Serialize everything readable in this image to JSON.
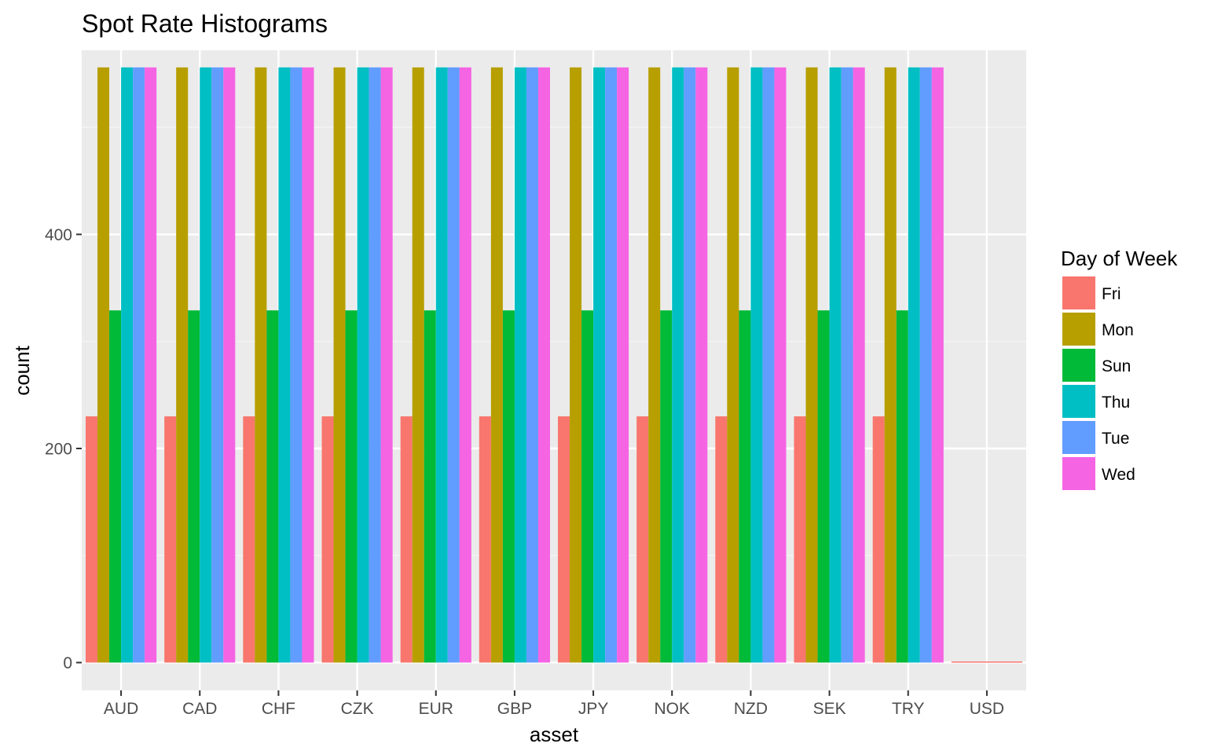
{
  "chart_data": {
    "type": "bar",
    "title": "Spot Rate Histograms",
    "xlabel": "asset",
    "ylabel": "count",
    "ylim": [
      -26,
      572
    ],
    "yticks": [
      0,
      200,
      400
    ],
    "grid": true,
    "legend_position": "right",
    "legend_title": "Day of Week",
    "categories": [
      "AUD",
      "CAD",
      "CHF",
      "CZK",
      "EUR",
      "GBP",
      "JPY",
      "NOK",
      "NZD",
      "SEK",
      "TRY",
      "USD"
    ],
    "series": [
      {
        "name": "Fri",
        "color": "#F8766D",
        "values": [
          230,
          230,
          230,
          230,
          230,
          230,
          230,
          230,
          230,
          230,
          230,
          1
        ]
      },
      {
        "name": "Mon",
        "color": "#B79F00",
        "values": [
          556,
          556,
          556,
          556,
          556,
          556,
          556,
          556,
          556,
          556,
          556,
          0
        ]
      },
      {
        "name": "Sun",
        "color": "#00BA38",
        "values": [
          329,
          329,
          329,
          329,
          329,
          329,
          329,
          329,
          329,
          329,
          329,
          0
        ]
      },
      {
        "name": "Thu",
        "color": "#00BFC4",
        "values": [
          556,
          556,
          556,
          556,
          556,
          556,
          556,
          556,
          556,
          556,
          556,
          0
        ]
      },
      {
        "name": "Tue",
        "color": "#619CFF",
        "values": [
          556,
          556,
          556,
          556,
          556,
          556,
          556,
          556,
          556,
          556,
          556,
          0
        ]
      },
      {
        "name": "Wed",
        "color": "#F564E3",
        "values": [
          556,
          556,
          556,
          556,
          556,
          556,
          556,
          556,
          556,
          556,
          556,
          0
        ]
      }
    ]
  },
  "colors": {
    "panel_background": "#EBEBEB",
    "major_grid": "#FFFFFF",
    "minor_grid": "#F5F5F5",
    "tick_text": "#4D4D4D"
  }
}
